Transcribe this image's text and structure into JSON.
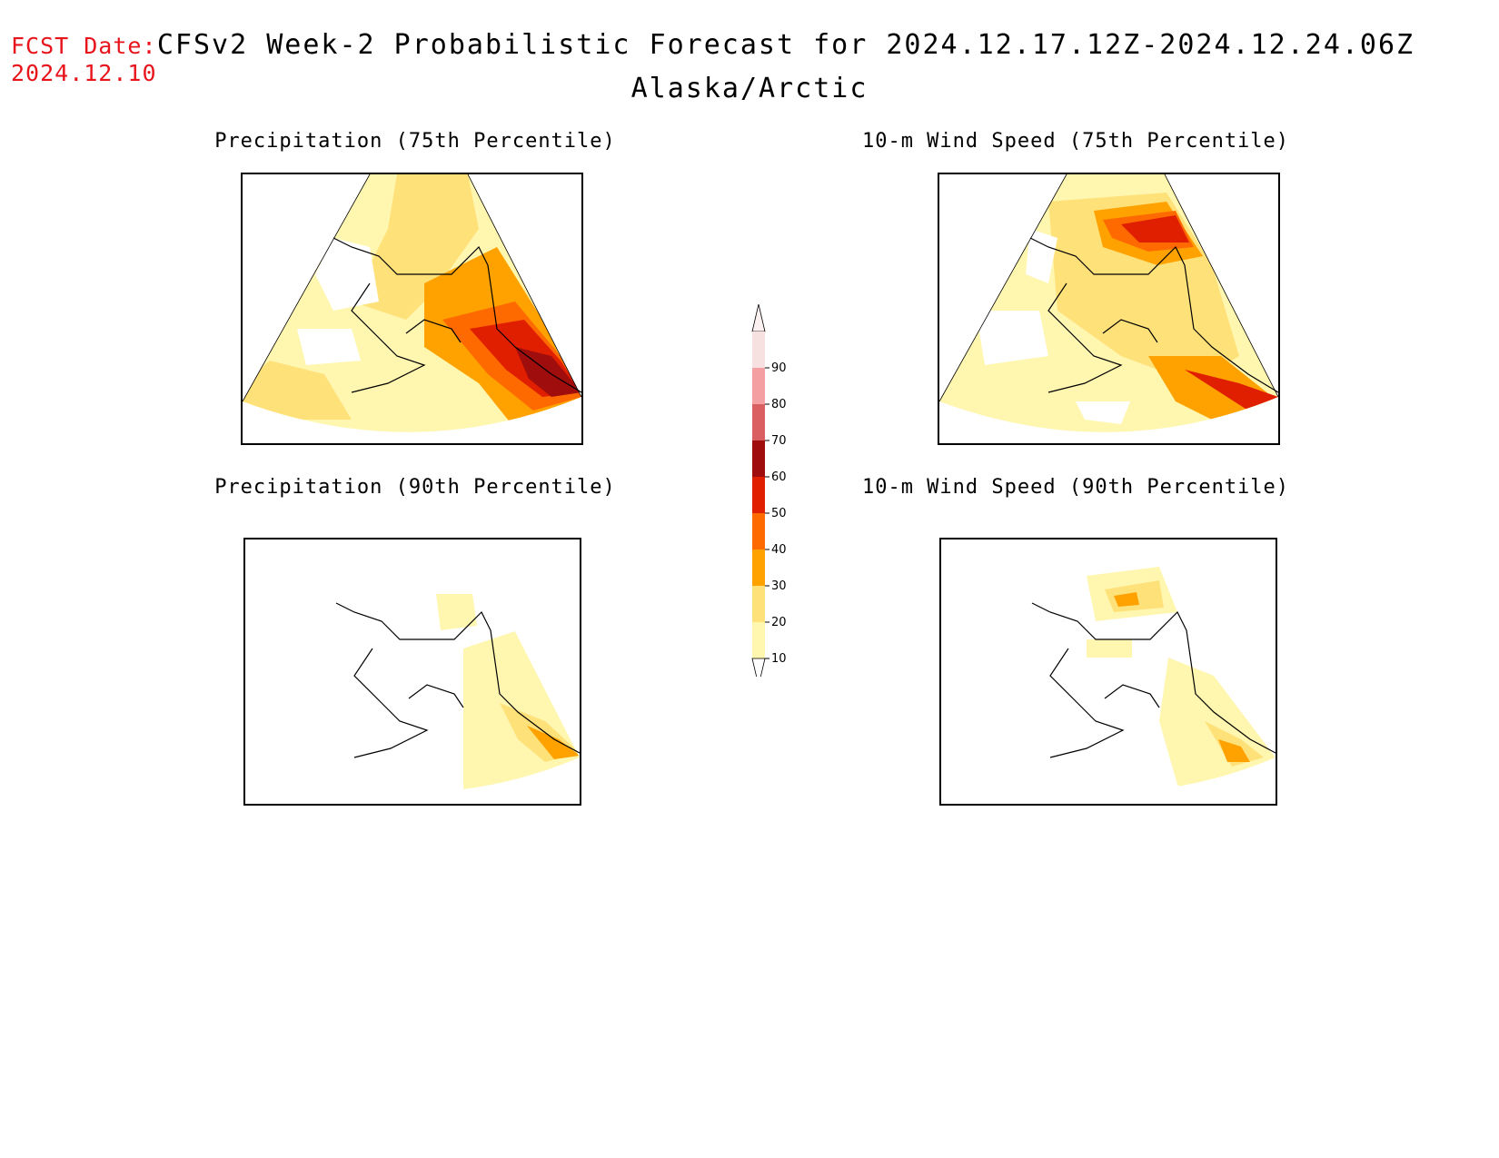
{
  "header": {
    "fcst_label": "FCST Date:",
    "fcst_date": "2024.12.10",
    "title": "CFSv2 Week-2 Probabilistic Forecast for 2024.12.17.12Z-2024.12.24.06Z",
    "subtitle": "Alaska/Arctic"
  },
  "panels": [
    {
      "title": "Precipitation (75th Percentile)",
      "intensity": "high",
      "focus": "southeast"
    },
    {
      "title": "10-m Wind Speed (75th Percentile)",
      "intensity": "high",
      "focus": "north-and-southeast"
    },
    {
      "title": "Precipitation (90th Percentile)",
      "intensity": "low",
      "focus": "southeast"
    },
    {
      "title": "10-m Wind Speed (90th Percentile)",
      "intensity": "low",
      "focus": "north-and-southeast"
    }
  ],
  "legend": {
    "ticks": [
      "90",
      "80",
      "70",
      "60",
      "50",
      "40",
      "30",
      "20",
      "10"
    ],
    "colors": [
      "#f6e0e0",
      "#f4a0a3",
      "#d95f63",
      "#a00d0d",
      "#e01e00",
      "#ff6a00",
      "#ffa200",
      "#ffe17a",
      "#fff6b0"
    ]
  }
}
